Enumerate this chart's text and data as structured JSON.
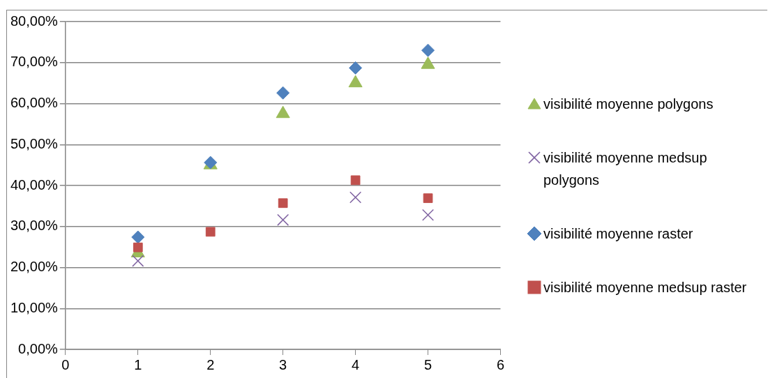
{
  "chart_data": {
    "type": "scatter",
    "x": [
      1,
      2,
      3,
      4,
      5
    ],
    "xlim": [
      0,
      6
    ],
    "xticks": [
      0,
      1,
      2,
      3,
      4,
      5,
      6
    ],
    "ylim": [
      0,
      80
    ],
    "yticks": [
      {
        "value": 0,
        "label": "0,00%"
      },
      {
        "value": 10,
        "label": "10,00%"
      },
      {
        "value": 20,
        "label": "20,00%"
      },
      {
        "value": 30,
        "label": "30,00%"
      },
      {
        "value": 40,
        "label": "40,00%"
      },
      {
        "value": 50,
        "label": "50,00%"
      },
      {
        "value": 60,
        "label": "60,00%"
      },
      {
        "value": 70,
        "label": "70,00%"
      },
      {
        "value": 80,
        "label": "80,00%"
      }
    ],
    "grid": "y",
    "legend": "right",
    "series": [
      {
        "name": "visibilité moyenne polygons",
        "color": "#9bbb59",
        "marker": "triangle",
        "values": [
          23.5,
          45.0,
          57.5,
          65.0,
          69.5
        ]
      },
      {
        "name": "visibilité moyenne medsup polygons",
        "color": "#8064a2",
        "marker": "cross",
        "values": [
          21.6,
          null,
          31.6,
          37.1,
          32.8
        ]
      },
      {
        "name": "visibilité moyenne raster",
        "color": "#4f81bd",
        "marker": "diamond",
        "values": [
          27.4,
          45.6,
          62.6,
          68.7,
          73.0
        ]
      },
      {
        "name": "visibilité moyenne medsup raster",
        "color": "#c0504d",
        "marker": "square",
        "values": [
          24.9,
          28.7,
          35.7,
          41.3,
          36.9
        ]
      }
    ]
  }
}
